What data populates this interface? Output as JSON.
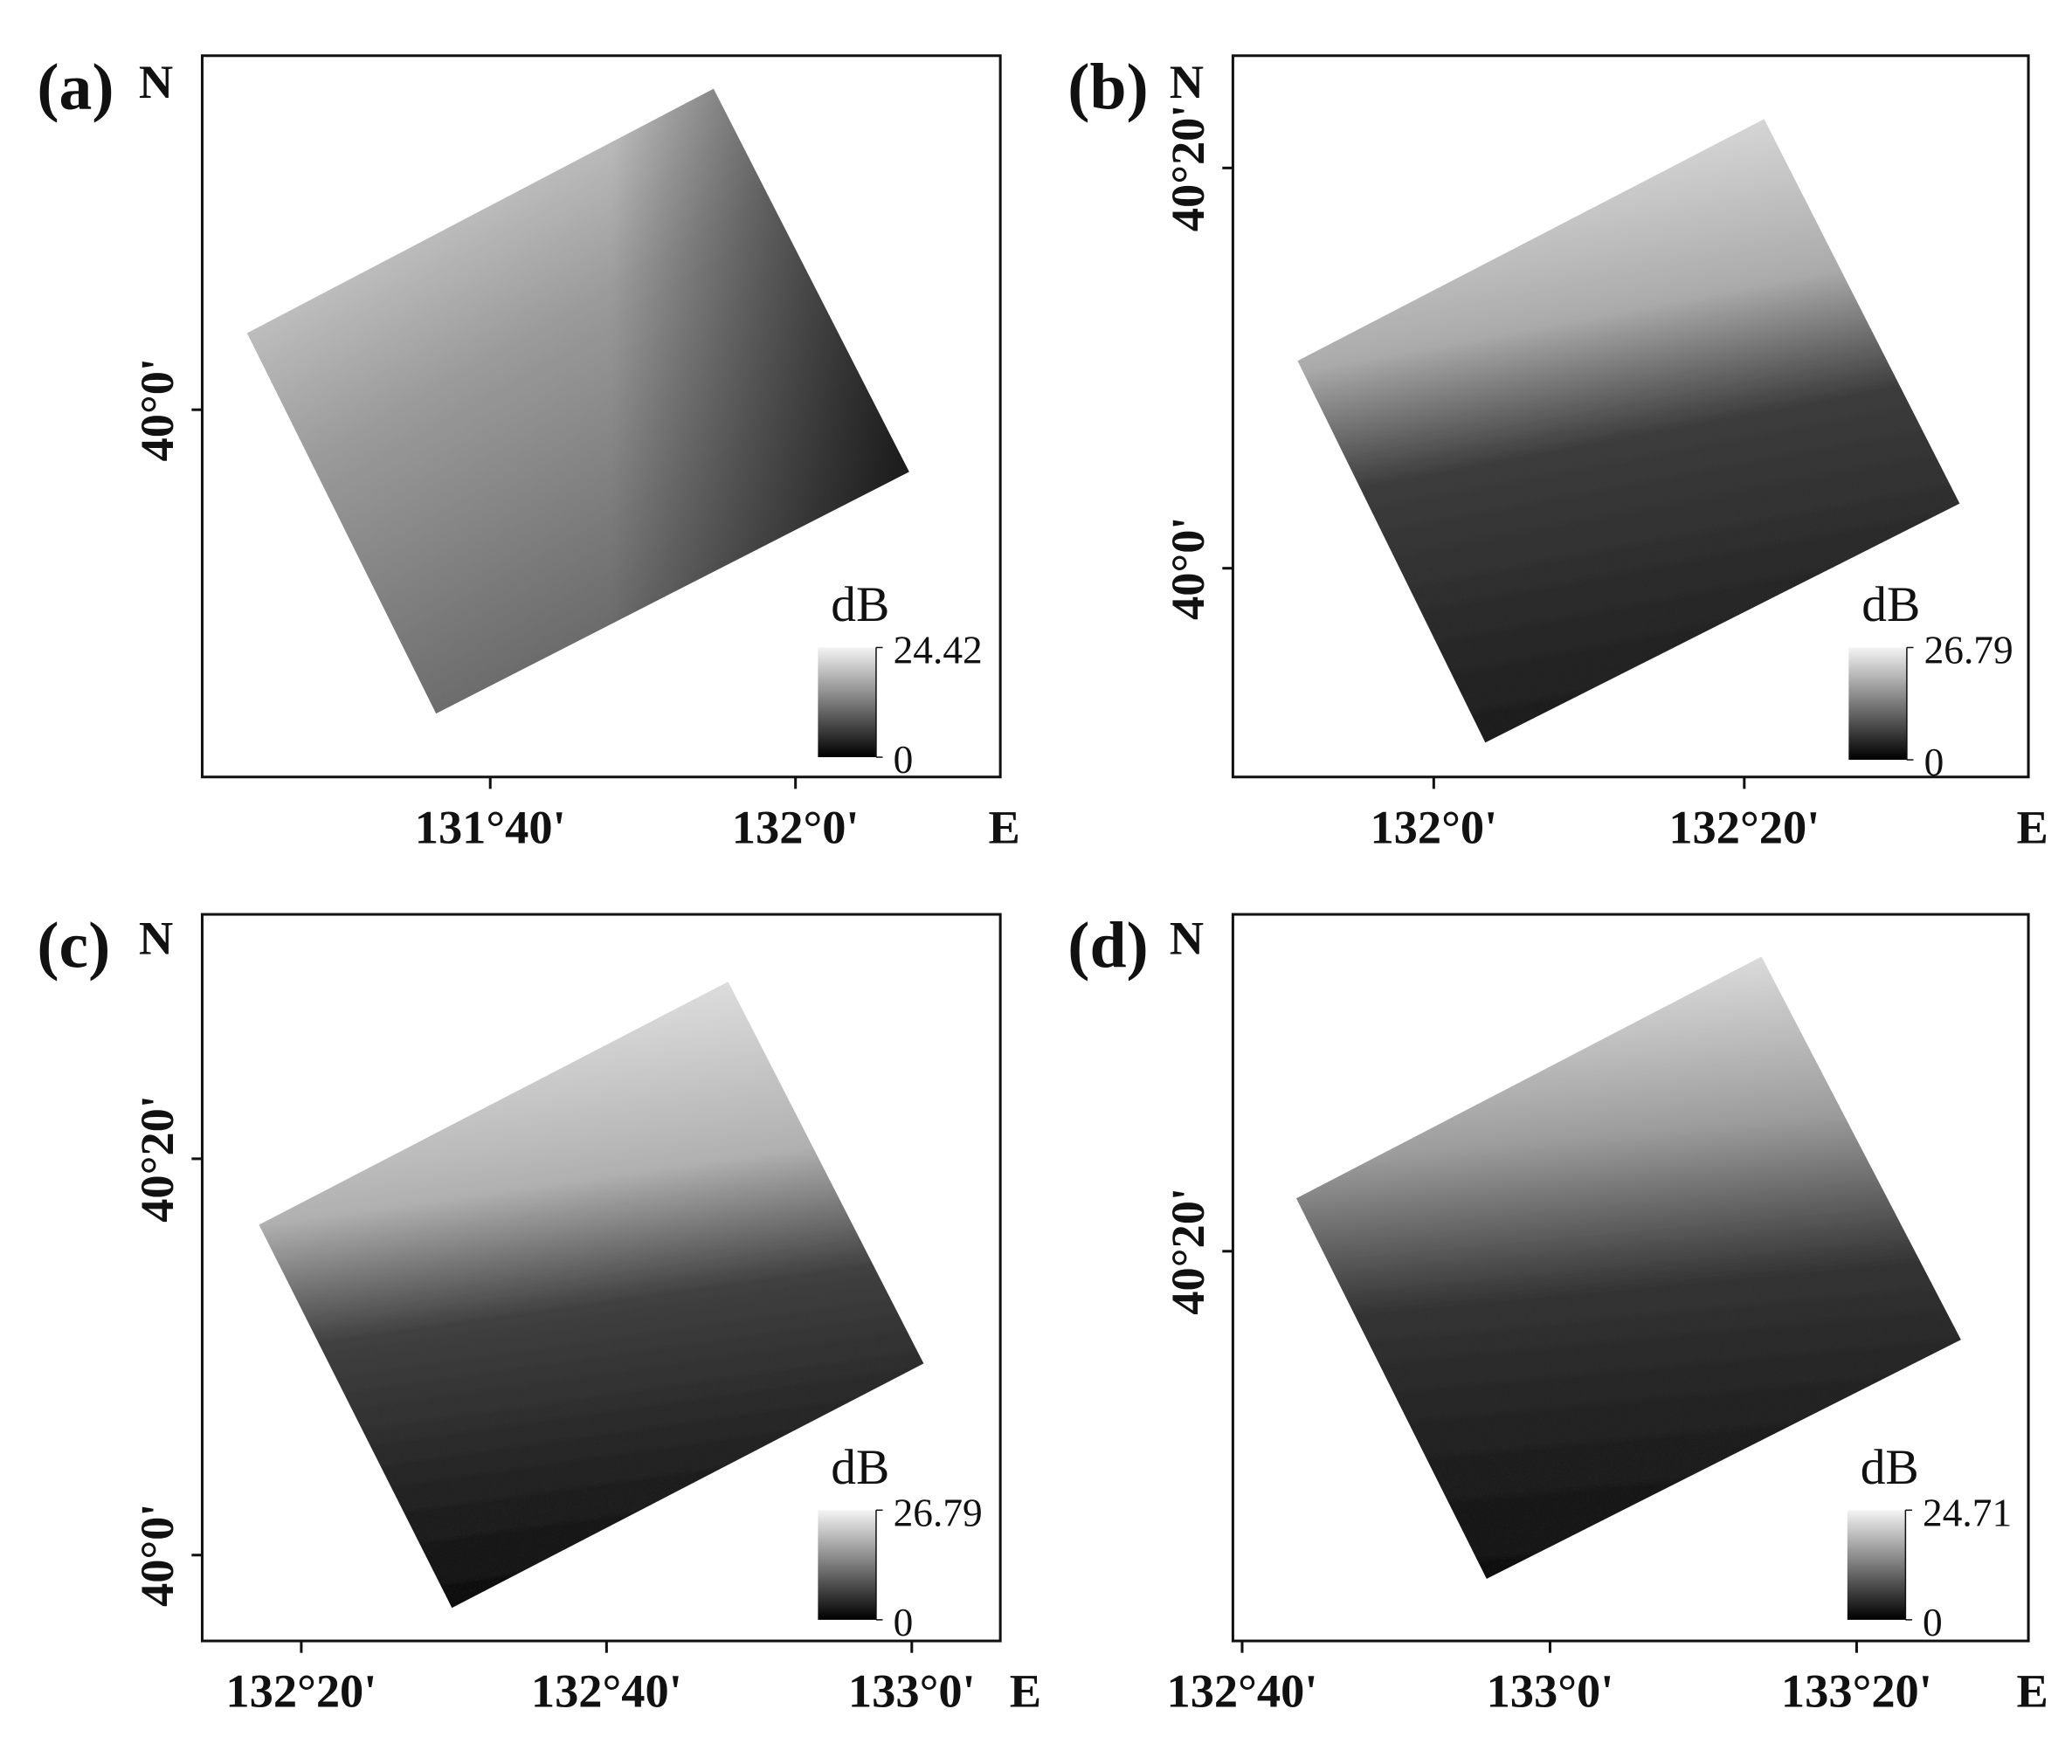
{
  "panels": [
    {
      "label": "(a)",
      "north": "N",
      "east": "E",
      "y_ticks": [
        "40°0'"
      ],
      "x_ticks": [
        "131°40'",
        "132°0'"
      ],
      "colorbar": {
        "unit": "dB",
        "max": 24.42,
        "min": 0
      }
    },
    {
      "label": "(b)",
      "north": "N",
      "east": "E",
      "y_ticks": [
        "40°20'",
        "40°0'"
      ],
      "x_ticks": [
        "132°0'",
        "132°20'"
      ],
      "colorbar": {
        "unit": "dB",
        "max": 26.79,
        "min": 0
      }
    },
    {
      "label": "(c)",
      "north": "N",
      "east": "E",
      "y_ticks": [
        "40°20'",
        "40°0'"
      ],
      "x_ticks": [
        "132°20'",
        "132°40'",
        "133°0'"
      ],
      "colorbar": {
        "unit": "dB",
        "max": 26.79,
        "min": 0
      }
    },
    {
      "label": "(d)",
      "north": "N",
      "east": "E",
      "y_ticks": [
        "40°20'"
      ],
      "x_ticks": [
        "132°40'",
        "133°0'",
        "133°20'"
      ],
      "colorbar": {
        "unit": "dB",
        "max": 24.71,
        "min": 0
      }
    }
  ]
}
